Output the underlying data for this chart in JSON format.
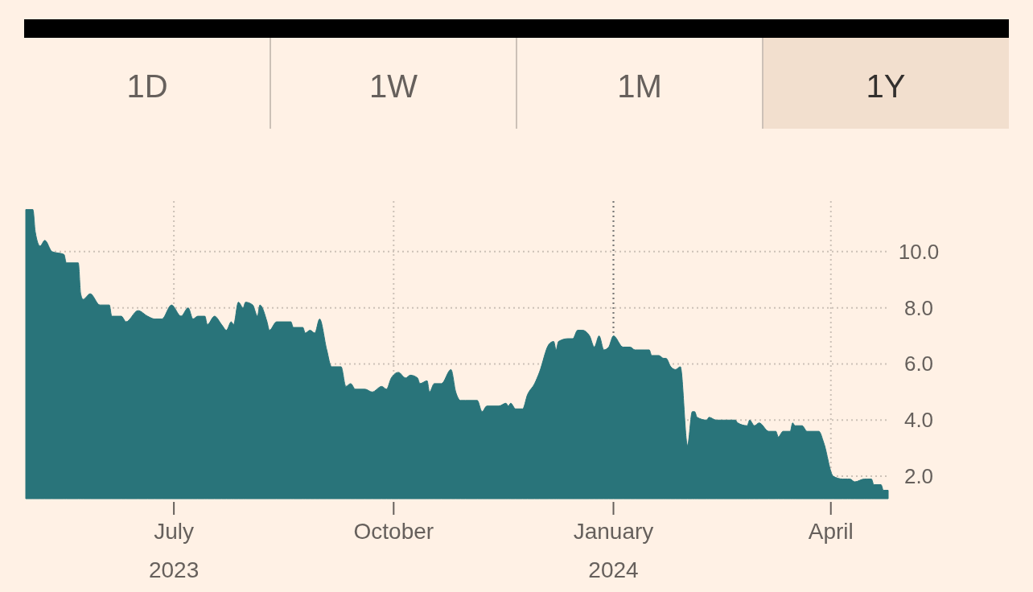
{
  "chart_data": {
    "type": "area",
    "color": "#29747a",
    "annotations": [
      "1D",
      "1W",
      "1M",
      "1Y"
    ],
    "x": [
      "2023-04-30",
      "2023-05-03",
      "2023-05-04",
      "2023-05-06",
      "2023-05-08",
      "2023-05-11",
      "2023-05-16",
      "2023-05-17",
      "2023-05-22",
      "2023-05-23",
      "2023-05-24",
      "2023-05-27",
      "2023-05-31",
      "2023-06-04",
      "2023-06-05",
      "2023-06-09",
      "2023-06-11",
      "2023-06-16",
      "2023-06-20",
      "2023-06-23",
      "2023-06-26",
      "2023-06-30",
      "2023-07-04",
      "2023-07-07",
      "2023-07-09",
      "2023-07-11",
      "2023-07-14",
      "2023-07-15",
      "2023-07-18",
      "2023-07-21",
      "2023-07-23",
      "2023-07-25",
      "2023-07-26",
      "2023-07-28",
      "2023-07-30",
      "2023-07-31",
      "2023-08-03",
      "2023-08-05",
      "2023-08-06",
      "2023-08-09",
      "2023-08-10",
      "2023-08-13",
      "2023-08-19",
      "2023-08-20",
      "2023-08-24",
      "2023-08-25",
      "2023-08-27",
      "2023-08-29",
      "2023-08-31",
      "2023-09-03",
      "2023-09-05",
      "2023-09-09",
      "2023-09-11",
      "2023-09-13",
      "2023-09-15",
      "2023-09-19",
      "2023-09-22",
      "2023-09-26",
      "2023-09-28",
      "2023-09-30",
      "2023-10-03",
      "2023-10-06",
      "2023-10-08",
      "2023-10-11",
      "2023-10-12",
      "2023-10-15",
      "2023-10-16",
      "2023-10-18",
      "2023-10-21",
      "2023-10-25",
      "2023-10-27",
      "2023-10-29",
      "2023-10-31",
      "2023-11-05",
      "2023-11-07",
      "2023-11-09",
      "2023-11-14",
      "2023-11-17",
      "2023-11-18",
      "2023-11-19",
      "2023-11-21",
      "2023-11-24",
      "2023-11-26",
      "2023-11-29",
      "2023-12-01",
      "2023-12-05",
      "2023-12-07",
      "2023-12-08",
      "2023-12-09",
      "2023-12-13",
      "2023-12-15",
      "2023-12-17",
      "2023-12-19",
      "2023-12-22",
      "2023-12-24",
      "2023-12-26",
      "2023-12-28",
      "2023-12-30",
      "2024-01-01",
      "2024-01-05",
      "2024-01-08",
      "2024-01-10",
      "2024-01-14",
      "2024-01-16",
      "2024-01-17",
      "2024-01-20",
      "2024-01-22",
      "2024-01-23",
      "2024-01-25",
      "2024-01-27",
      "2024-01-29",
      "2024-02-01",
      "2024-02-03",
      "2024-02-04",
      "2024-02-05",
      "2024-02-09",
      "2024-02-10",
      "2024-02-13",
      "2024-02-16",
      "2024-02-21",
      "2024-02-22",
      "2024-02-26",
      "2024-02-27",
      "2024-02-29",
      "2024-03-02",
      "2024-03-06",
      "2024-03-09",
      "2024-03-10",
      "2024-03-12",
      "2024-03-15",
      "2024-03-16",
      "2024-03-17",
      "2024-03-20",
      "2024-03-22",
      "2024-03-27",
      "2024-03-29",
      "2024-04-02",
      "2024-04-06",
      "2024-04-08",
      "2024-04-09",
      "2024-04-11",
      "2024-04-15",
      "2024-04-16",
      "2024-04-18",
      "2024-04-19",
      "2024-04-22",
      "2024-04-23",
      "2024-04-25"
    ],
    "values": [
      11.5,
      11.5,
      10.7,
      10.2,
      10.4,
      10.0,
      9.9,
      9.6,
      9.6,
      8.5,
      8.3,
      8.5,
      8.1,
      8.1,
      7.7,
      7.7,
      7.5,
      7.9,
      7.7,
      7.6,
      7.6,
      8.1,
      7.7,
      8.0,
      7.6,
      7.7,
      7.7,
      7.4,
      7.7,
      7.4,
      7.2,
      7.5,
      7.4,
      8.2,
      8.0,
      8.2,
      8.1,
      7.7,
      8.1,
      7.5,
      7.2,
      7.5,
      7.5,
      7.3,
      7.3,
      7.1,
      7.2,
      7.1,
      7.6,
      6.5,
      5.9,
      5.9,
      5.2,
      5.3,
      5.1,
      5.1,
      5.0,
      5.2,
      5.1,
      5.5,
      5.7,
      5.5,
      5.6,
      5.5,
      5.3,
      5.4,
      5.0,
      5.3,
      5.3,
      5.8,
      5.0,
      4.7,
      4.7,
      4.7,
      4.3,
      4.5,
      4.5,
      4.6,
      4.5,
      4.6,
      4.4,
      4.4,
      4.9,
      5.3,
      5.7,
      6.7,
      6.8,
      6.5,
      6.8,
      6.9,
      6.9,
      7.2,
      7.2,
      7.0,
      6.6,
      7.0,
      6.5,
      6.6,
      7.0,
      6.6,
      6.6,
      6.5,
      6.5,
      6.5,
      6.3,
      6.3,
      6.2,
      6.2,
      5.9,
      5.8,
      5.9,
      3.1,
      4.3,
      4.3,
      4.1,
      4.0,
      4.1,
      4.0,
      4.0,
      4.0,
      3.9,
      3.8,
      4.0,
      3.8,
      3.9,
      3.6,
      3.6,
      3.4,
      3.6,
      3.6,
      3.9,
      3.8,
      3.8,
      3.6,
      3.6,
      3.2,
      2.0,
      1.9,
      1.9,
      1.9,
      1.8,
      1.9,
      1.9,
      1.9,
      1.7,
      1.7,
      1.5,
      1.5
    ],
    "xlim": [
      "2023-04-30",
      "2024-04-25"
    ],
    "xticks": [
      {
        "value": "2023-07-01",
        "label": "July\n2023"
      },
      {
        "value": "2023-10-01",
        "label": "October"
      },
      {
        "value": "2024-01-01",
        "label": "January\n2024"
      },
      {
        "value": "2024-04-01",
        "label": "April"
      }
    ],
    "ylim": [
      1.2,
      11.8
    ],
    "yticks": [
      {
        "value": 2,
        "label": "2.0"
      },
      {
        "value": 4,
        "label": "4.0"
      },
      {
        "value": 6,
        "label": "6.0"
      },
      {
        "value": 8,
        "label": "8.0"
      },
      {
        "value": 10,
        "label": "10.0"
      }
    ],
    "grid": true,
    "ref_lines": [
      {
        "axis": "x",
        "value": "2024-01-01",
        "color": "#777777",
        "line_style": "dotted"
      }
    ]
  }
}
